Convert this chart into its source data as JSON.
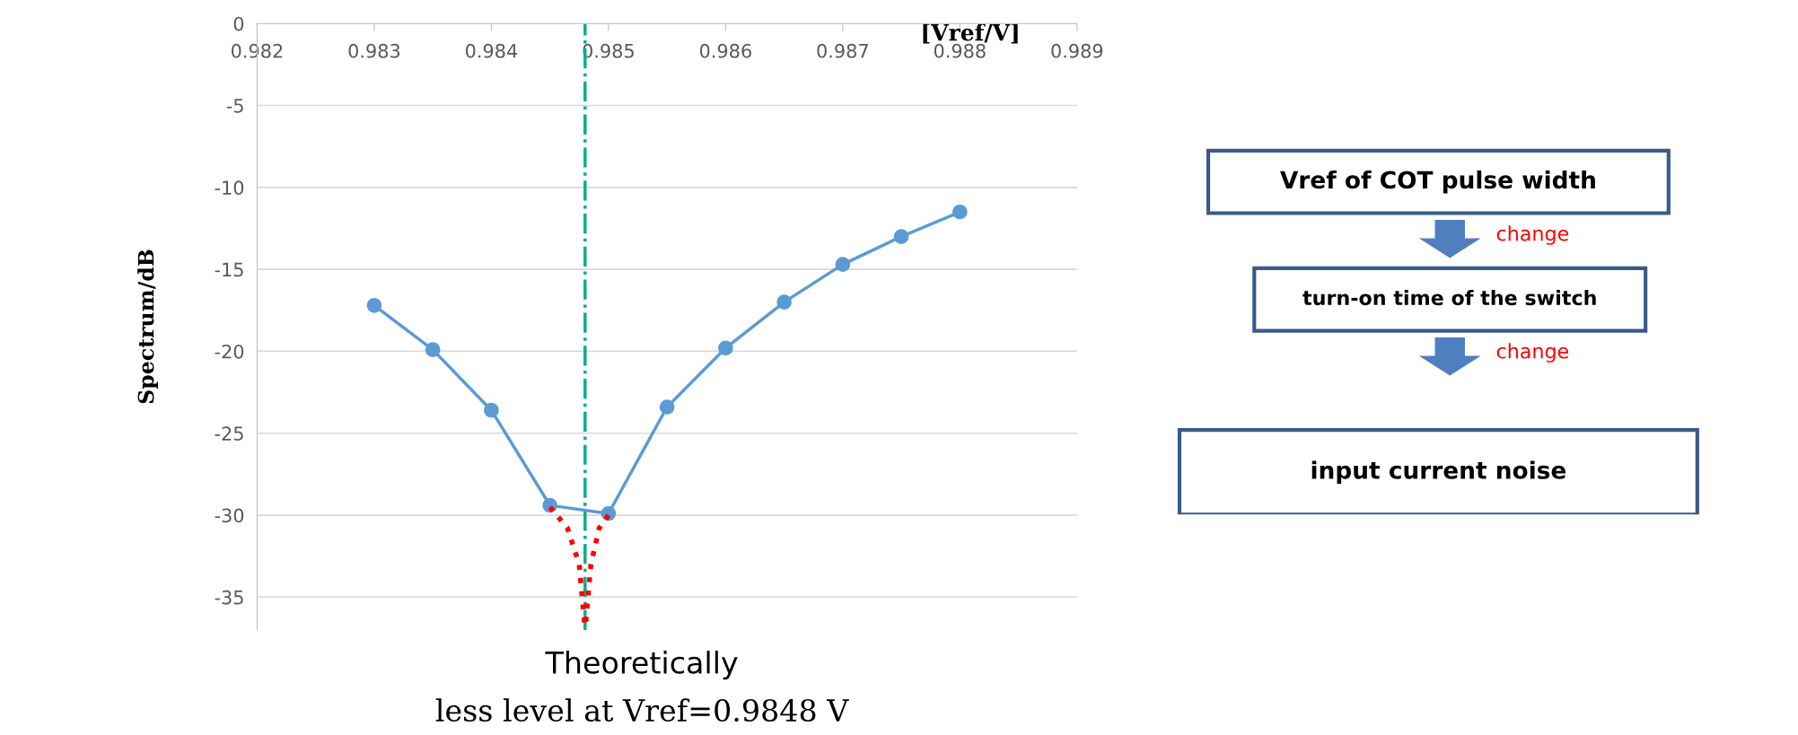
{
  "chart_data": [
    {
      "type": "line",
      "xlabel": "[Vref/V]",
      "ylabel": "Spectrum/dB",
      "xlim": [
        0.982,
        0.989
      ],
      "xticks": [
        0.982,
        0.983,
        0.984,
        0.985,
        0.986,
        0.987,
        0.988,
        0.989
      ],
      "ylim": [
        -37,
        0
      ],
      "yticks": [
        0,
        -5,
        -10,
        -15,
        -20,
        -25,
        -30,
        -35
      ],
      "grid": "y",
      "marker": "circle",
      "series": [
        {
          "color": "#5b9bd5",
          "x": [
            0.983,
            0.9835,
            0.984,
            0.9845,
            0.985,
            0.9855,
            0.986,
            0.9865,
            0.987,
            0.9875,
            0.988
          ],
          "values": [
            -17.2,
            -19.9,
            -23.6,
            -29.4,
            -29.9,
            -23.4,
            -19.8,
            -17,
            -14.7,
            -13,
            -11.5
          ]
        },
        {
          "type": "line",
          "color": "#ff0000",
          "line_style": "dotted",
          "marker": "none",
          "x": [
            0.9845,
            0.98465,
            0.98475,
            0.9848
          ],
          "values": [
            -29.5,
            -30.8,
            -33,
            -37
          ]
        },
        {
          "type": "line",
          "color": "#ff0000",
          "line_style": "dotted",
          "marker": "none",
          "x": [
            0.985,
            0.98492,
            0.98485,
            0.9848
          ],
          "values": [
            -30,
            -30.8,
            -33,
            -37
          ]
        }
      ],
      "ref_lines": [
        {
          "axis": "x",
          "value": 0.9848,
          "color": "#00b08c",
          "line_style": "dashdot"
        }
      ],
      "annotations": [
        "Theoretically",
        "less level at Vref=0.9848 V"
      ]
    },
    {
      "type": "other",
      "annotations": [
        "Vref of COT pulse width",
        "change",
        "turn-on time of the switch",
        "change",
        "input current noise"
      ]
    }
  ]
}
